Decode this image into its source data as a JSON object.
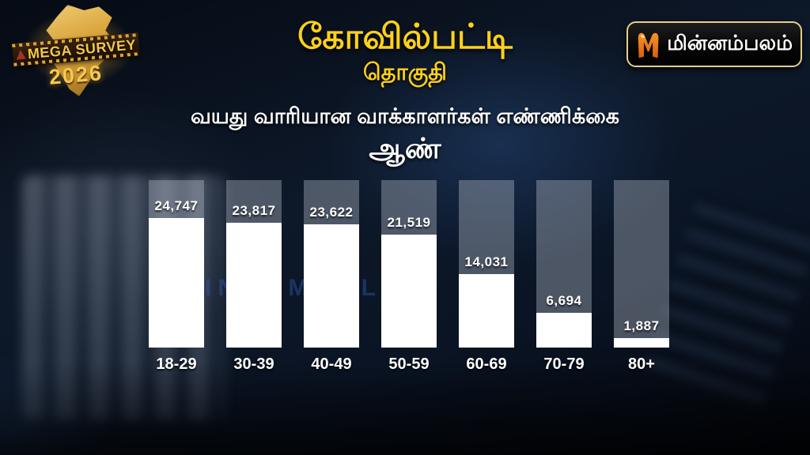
{
  "branding": {
    "survey_logo": {
      "line1": "MEGA SURVEY",
      "line2": "2026"
    },
    "channel_logo": {
      "text": "மின்னம்பலம்"
    },
    "watermark": "MINNAMBALAM"
  },
  "header": {
    "title": "கோவில்பட்டி",
    "subtitle": "தொகுதி",
    "section_heading": "வயது வாரியான வாக்காளர்கள் எண்ணிக்கை",
    "gender_label": "ஆண்"
  },
  "chart_data": {
    "type": "bar",
    "title": "வயது வாரியான வாக்காளர்கள் எண்ணிக்கை",
    "subtitle": "ஆண்",
    "categories": [
      "18-29",
      "30-39",
      "40-49",
      "50-59",
      "60-69",
      "70-79",
      "80+"
    ],
    "values": [
      24747,
      23817,
      23622,
      21519,
      14031,
      6694,
      1887
    ],
    "value_labels": [
      "24,747",
      "23,817",
      "23,622",
      "21,519",
      "14,031",
      "6,694",
      "1,887"
    ],
    "ylim": [
      0,
      32000
    ],
    "grid": false,
    "legend": false,
    "bar_color": "#ffffff",
    "track_color": "rgba(178,185,198,0.40)"
  },
  "colors": {
    "title_yellow": "#ffd11a",
    "gold_accent": "#f4c84a",
    "logo_orange_top": "#f7941e",
    "logo_orange_bottom": "#d95f13",
    "watermark_blue": "rgba(45,88,168,0.45)",
    "background_navy": "#0d1829"
  }
}
